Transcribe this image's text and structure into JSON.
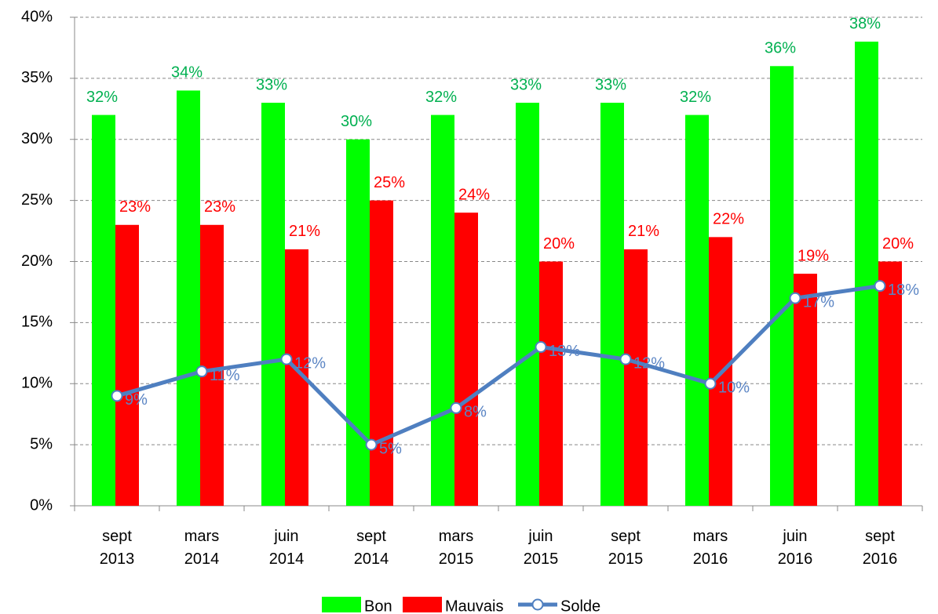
{
  "chart_data": {
    "type": "bar",
    "categories": [
      "sept\n2013",
      "mars\n2014",
      "juin\n2014",
      "sept\n2014",
      "mars\n2015",
      "juin\n2015",
      "sept\n2015",
      "mars\n2016",
      "juin\n2016",
      "sept\n2016"
    ],
    "series": [
      {
        "name": "Bon",
        "type": "bar",
        "color": "#00ff00",
        "label_color": "#00b050",
        "values": [
          32,
          34,
          33,
          30,
          32,
          33,
          33,
          32,
          36,
          38
        ],
        "value_labels": [
          "32%",
          "34%",
          "33%",
          "30%",
          "32%",
          "33%",
          "33%",
          "32%",
          "36%",
          "38%"
        ]
      },
      {
        "name": "Mauvais",
        "type": "bar",
        "color": "#ff0000",
        "label_color": "#ff0000",
        "values": [
          23,
          23,
          21,
          25,
          24,
          20,
          21,
          22,
          19,
          20
        ],
        "value_labels": [
          "23%",
          "23%",
          "21%",
          "25%",
          "24%",
          "20%",
          "21%",
          "22%",
          "19%",
          "20%"
        ]
      },
      {
        "name": "Solde",
        "type": "line",
        "color": "#4f7fc0",
        "label_color": "#5b85c4",
        "values": [
          9,
          11,
          12,
          5,
          8,
          13,
          12,
          10,
          17,
          18
        ],
        "value_labels": [
          "9%",
          "11%",
          "12%",
          "5%",
          "8%",
          "13%",
          "12%",
          "10%",
          "17%",
          "18%"
        ]
      }
    ],
    "ylim": [
      0,
      40
    ],
    "yticks": [
      {
        "value": 0,
        "label": "0%"
      },
      {
        "value": 5,
        "label": "5%"
      },
      {
        "value": 10,
        "label": "10%"
      },
      {
        "value": 15,
        "label": "15%"
      },
      {
        "value": 20,
        "label": "20%"
      },
      {
        "value": 25,
        "label": "25%"
      },
      {
        "value": 30,
        "label": "30%"
      },
      {
        "value": 35,
        "label": "35%"
      },
      {
        "value": 40,
        "label": "40%"
      }
    ],
    "grid": true,
    "legend": "bottom"
  }
}
